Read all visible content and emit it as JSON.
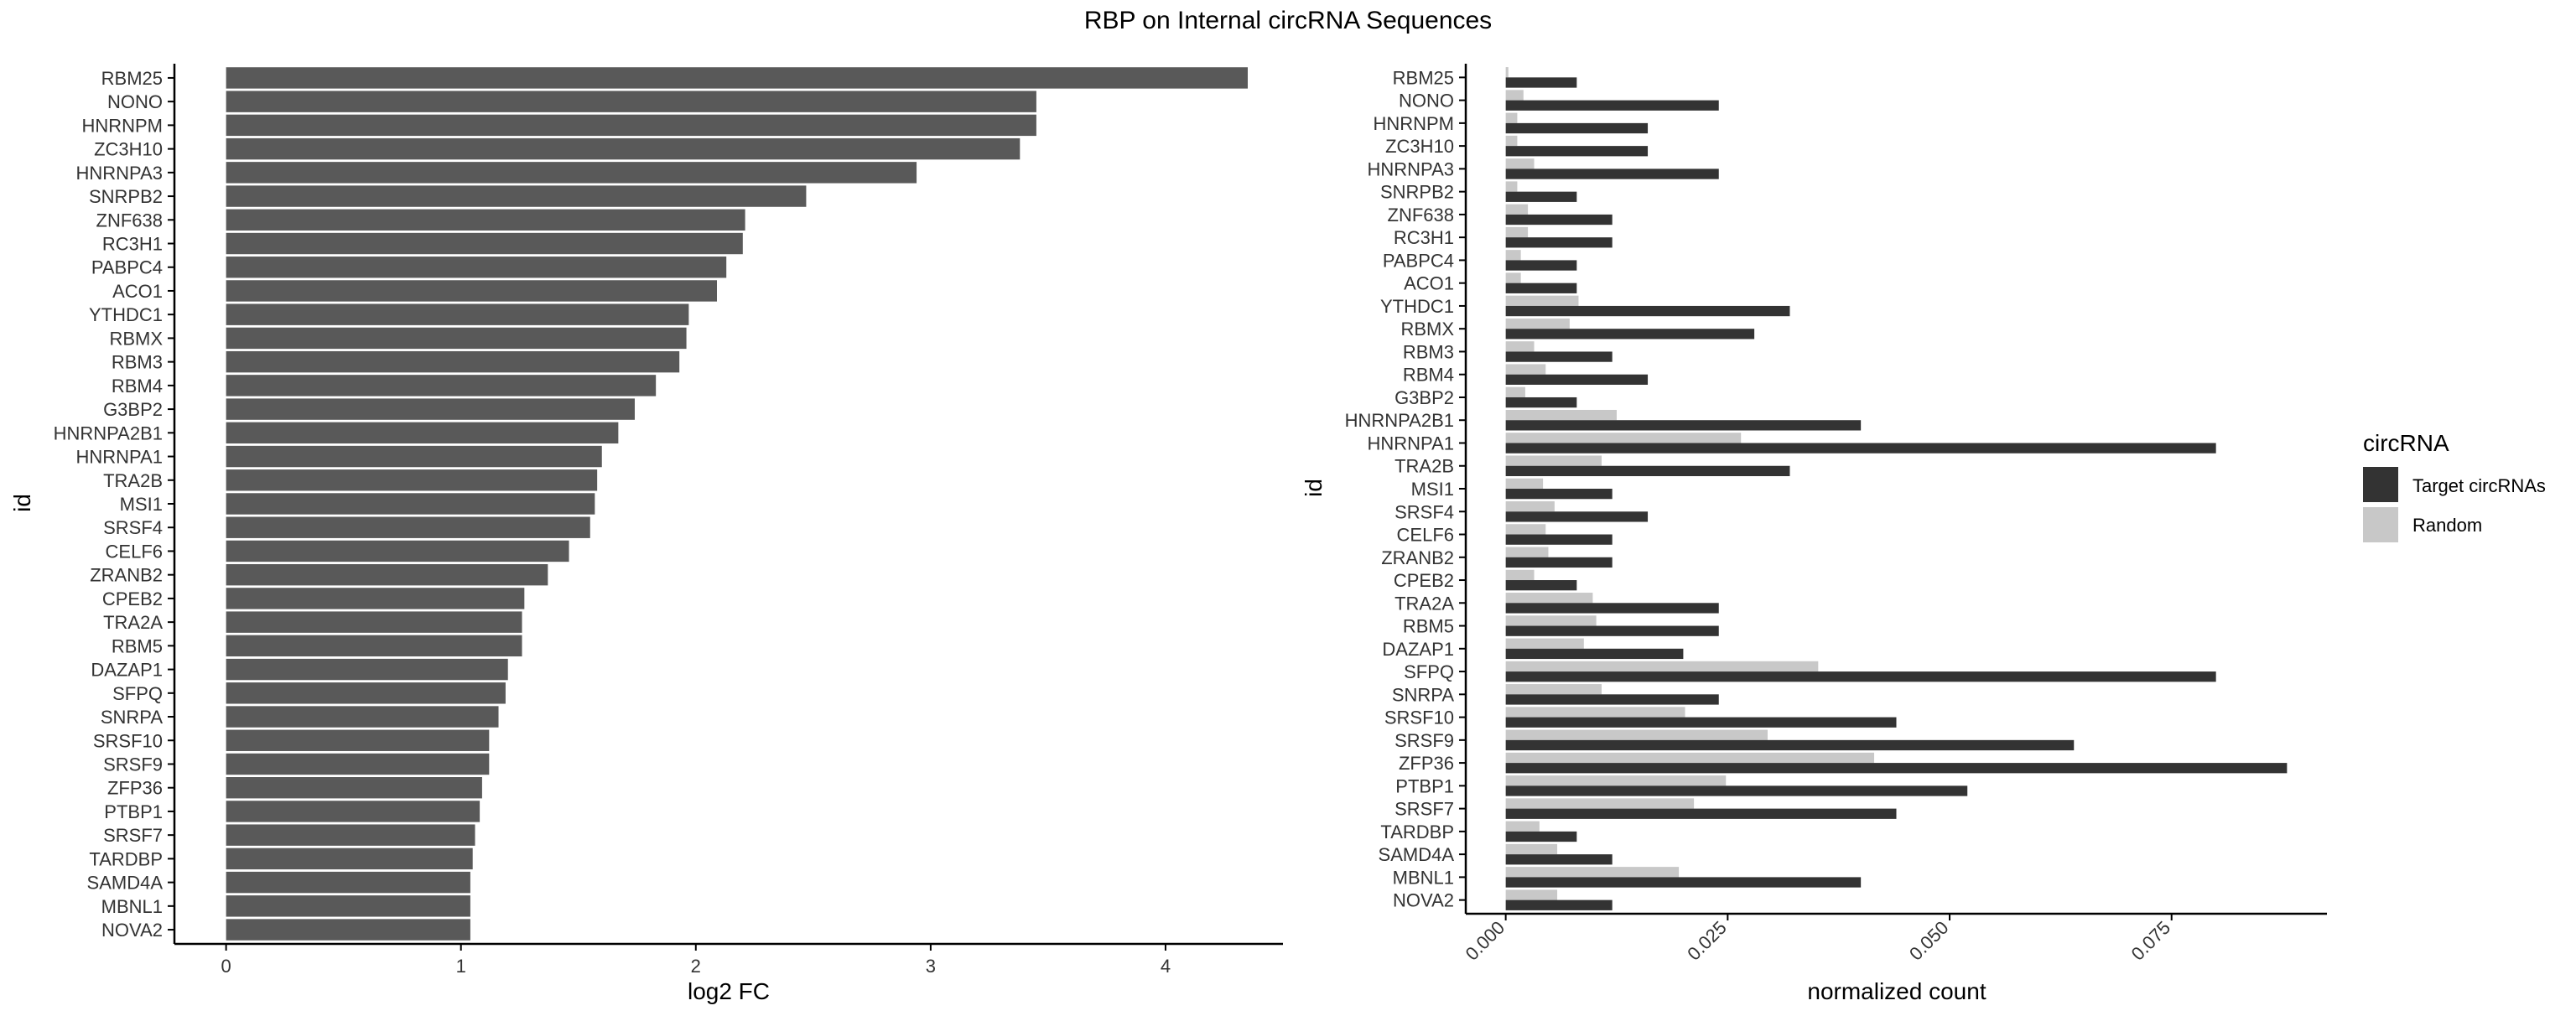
{
  "title": "RBP on Internal circRNA Sequences",
  "chart_data": [
    {
      "type": "bar",
      "orientation": "horizontal",
      "categories": [
        "RBM25",
        "NONO",
        "HNRNPM",
        "ZC3H10",
        "HNRNPA3",
        "SNRPB2",
        "ZNF638",
        "RC3H1",
        "PABPC4",
        "ACO1",
        "YTHDC1",
        "RBMX",
        "RBM3",
        "RBM4",
        "G3BP2",
        "HNRNPA2B1",
        "HNRNPA1",
        "TRA2B",
        "MSI1",
        "SRSF4",
        "CELF6",
        "ZRANB2",
        "CPEB2",
        "TRA2A",
        "RBM5",
        "DAZAP1",
        "SFPQ",
        "SNRPA",
        "SRSF10",
        "SRSF9",
        "ZFP36",
        "PTBP1",
        "SRSF7",
        "TARDBP",
        "SAMD4A",
        "MBNL1",
        "NOVA2"
      ],
      "values": [
        4.35,
        3.45,
        3.45,
        3.38,
        2.94,
        2.47,
        2.21,
        2.2,
        2.13,
        2.09,
        1.97,
        1.96,
        1.93,
        1.83,
        1.74,
        1.67,
        1.6,
        1.58,
        1.57,
        1.55,
        1.46,
        1.37,
        1.27,
        1.26,
        1.26,
        1.2,
        1.19,
        1.16,
        1.12,
        1.12,
        1.09,
        1.08,
        1.06,
        1.05,
        1.04,
        1.04,
        1.04
      ],
      "xlabel": "log2 FC",
      "ylabel": "id",
      "xlim": [
        -0.22,
        4.5
      ],
      "xticks": [
        0,
        1,
        2,
        3,
        4
      ],
      "xtick_labels": [
        "0",
        "1",
        "2",
        "3",
        "4"
      ],
      "color": "#595959",
      "grid": false
    },
    {
      "type": "bar",
      "orientation": "horizontal",
      "grouped": true,
      "categories": [
        "RBM25",
        "NONO",
        "HNRNPM",
        "ZC3H10",
        "HNRNPA3",
        "SNRPB2",
        "ZNF638",
        "RC3H1",
        "PABPC4",
        "ACO1",
        "YTHDC1",
        "RBMX",
        "RBM3",
        "RBM4",
        "G3BP2",
        "HNRNPA2B1",
        "HNRNPA1",
        "TRA2B",
        "MSI1",
        "SRSF4",
        "CELF6",
        "ZRANB2",
        "CPEB2",
        "TRA2A",
        "RBM5",
        "DAZAP1",
        "SFPQ",
        "SNRPA",
        "SRSF10",
        "SRSF9",
        "ZFP36",
        "PTBP1",
        "SRSF7",
        "TARDBP",
        "SAMD4A",
        "MBNL1",
        "NOVA2"
      ],
      "series": [
        {
          "name": "Target circRNAs",
          "color": "#333333",
          "values": [
            0.008,
            0.024,
            0.016,
            0.016,
            0.024,
            0.008,
            0.012,
            0.012,
            0.008,
            0.008,
            0.032,
            0.028,
            0.012,
            0.016,
            0.008,
            0.04,
            0.08,
            0.032,
            0.012,
            0.016,
            0.012,
            0.012,
            0.008,
            0.024,
            0.024,
            0.02,
            0.08,
            0.024,
            0.044,
            0.064,
            0.088,
            0.052,
            0.044,
            0.008,
            0.012,
            0.04,
            0.012
          ]
        },
        {
          "name": "Random",
          "color": "#c8c8c8",
          "values": [
            0.0003,
            0.002,
            0.0013,
            0.0013,
            0.0032,
            0.0013,
            0.0025,
            0.0025,
            0.0017,
            0.0017,
            0.0082,
            0.0072,
            0.0032,
            0.0045,
            0.0022,
            0.0125,
            0.0265,
            0.0108,
            0.0042,
            0.0055,
            0.0045,
            0.0048,
            0.0032,
            0.0098,
            0.0102,
            0.0088,
            0.0352,
            0.0108,
            0.0202,
            0.0295,
            0.0415,
            0.0248,
            0.0212,
            0.0038,
            0.0058,
            0.0195,
            0.0058
          ]
        }
      ],
      "xlabel": "normalized count",
      "ylabel": "id",
      "xlim": [
        -0.0045,
        0.0925
      ],
      "xticks": [
        0,
        0.025,
        0.05,
        0.075
      ],
      "xtick_labels": [
        "0.000",
        "0.025",
        "0.050",
        "0.075"
      ],
      "grid": false,
      "legend": {
        "title": "circRNA",
        "position": "right",
        "entries": [
          {
            "label": "Target circRNAs",
            "color": "#333333"
          },
          {
            "label": "Random",
            "color": "#c8c8c8"
          }
        ]
      }
    }
  ]
}
